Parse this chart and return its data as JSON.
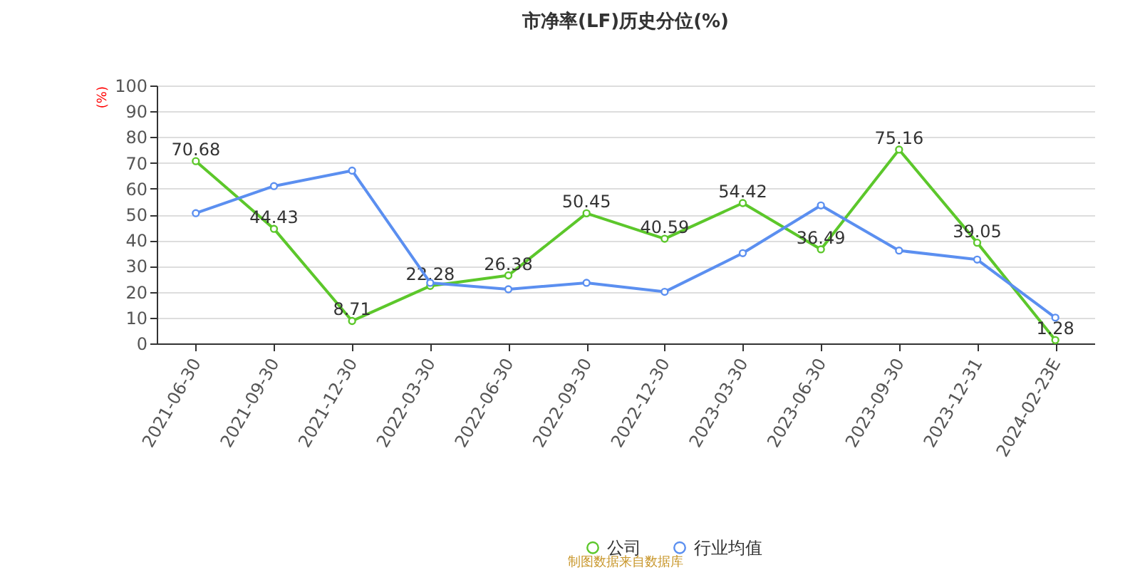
{
  "chart_data": {
    "type": "line",
    "title": "市净率(LF)历史分位(%)",
    "ylabel": "(%)",
    "categories": [
      "2021-06-30",
      "2021-09-30",
      "2021-12-30",
      "2022-03-30",
      "2022-06-30",
      "2022-09-30",
      "2022-12-30",
      "2023-03-30",
      "2023-06-30",
      "2023-09-30",
      "2023-12-31",
      "2024-02-23E"
    ],
    "series": [
      {
        "name": "公司",
        "color": "#5cc72b",
        "values": [
          70.68,
          44.43,
          8.71,
          22.28,
          26.38,
          50.45,
          40.59,
          54.42,
          36.49,
          75.16,
          39.05,
          1.28
        ],
        "value_labels": [
          "70.68",
          "44.43",
          "8.71",
          "22.28",
          "26.38",
          "50.45",
          "40.59",
          "54.42",
          "36.49",
          "75.16",
          "39.05",
          "1.28"
        ]
      },
      {
        "name": "行业均值",
        "color": "#5b8ff0",
        "values": [
          50.5,
          61,
          67,
          23.5,
          21,
          23.5,
          20,
          35,
          53.5,
          36,
          32.5,
          10
        ]
      }
    ],
    "ylim": [
      0,
      100
    ],
    "yticks": [
      0,
      10,
      20,
      30,
      40,
      50,
      60,
      70,
      80,
      90,
      100
    ],
    "grid": "y",
    "legend": "bottom",
    "marker": "circle",
    "annotations": [
      "制图数据来自数据库"
    ]
  }
}
